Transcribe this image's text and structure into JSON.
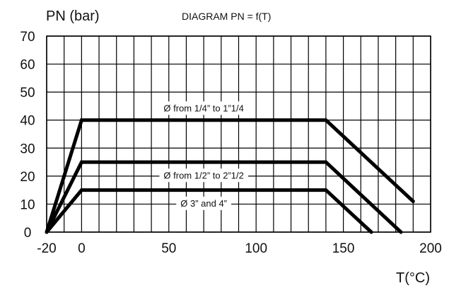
{
  "chart_data": {
    "type": "line",
    "title": "DIAGRAM PN = f(T)",
    "ylabel": "PN (bar)",
    "xlabel": "T(°C)",
    "xlim": [
      -20,
      200
    ],
    "ylim": [
      0,
      70
    ],
    "x_ticks": [
      -20,
      0,
      50,
      100,
      150,
      200
    ],
    "y_ticks": [
      0,
      10,
      20,
      30,
      40,
      50,
      60,
      70
    ],
    "grid": true,
    "series": [
      {
        "x": [
          -20,
          0,
          140,
          190
        ],
        "y": [
          0,
          40,
          40,
          11
        ]
      },
      {
        "x": [
          -20,
          0,
          140,
          183
        ],
        "y": [
          0,
          25,
          25,
          0
        ]
      },
      {
        "x": [
          -20,
          0,
          140,
          166
        ],
        "y": [
          0,
          15,
          15,
          0
        ]
      }
    ],
    "annotations": [
      {
        "text": "Ø from 1/4” to 1”1/4",
        "x": 70,
        "y": 44
      },
      {
        "text": "Ø from 1/2” to 2”1/2",
        "x": 70,
        "y": 20
      },
      {
        "text": "Ø 3” and 4”",
        "x": 70,
        "y": 10
      }
    ]
  }
}
